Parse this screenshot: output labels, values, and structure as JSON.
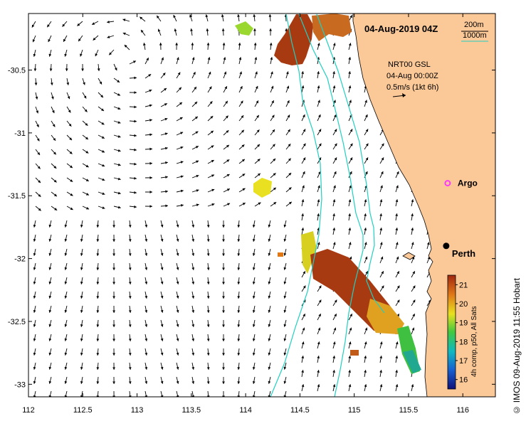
{
  "map": {
    "title": "04-Aug-2019 04Z",
    "legend_depth": [
      {
        "label": "200m",
        "color": "#000000"
      },
      {
        "label": "1000m",
        "color": "#20d0c0"
      }
    ],
    "currents": {
      "line1": "NRT00 GSL",
      "line2": "04-Aug 00:00Z",
      "line3": "0.5m/s (1kt 6h)"
    },
    "places": [
      {
        "name": "Argo",
        "lon": 115.86,
        "lat": -31.4,
        "marker": "magenta-circle"
      },
      {
        "name": "Perth",
        "lon": 115.86,
        "lat": -31.95,
        "marker": "black-dot"
      }
    ],
    "colorbar": {
      "label": "4h comp, p50, All Sats",
      "ticks": [
        "21",
        "20",
        "19",
        "18",
        "17",
        "16"
      ],
      "min": 15.5,
      "max": 21.5
    },
    "x_ticks": [
      "112",
      "112.5",
      "113",
      "113.5",
      "114",
      "114.5",
      "115",
      "115.5",
      "116"
    ],
    "y_ticks": [
      "-30.5",
      "-31",
      "-31.5",
      "-32",
      "-32.5",
      "-33"
    ],
    "xlim": [
      112,
      116.3
    ],
    "ylim": [
      -33.1,
      -30.05
    ],
    "credit": "© IMOS 09-Aug-2019 11:55 Hobart",
    "colors": {
      "land": "#fbc898",
      "isobath_1000": "#20d0c0",
      "argo": "#ff33ff"
    }
  }
}
